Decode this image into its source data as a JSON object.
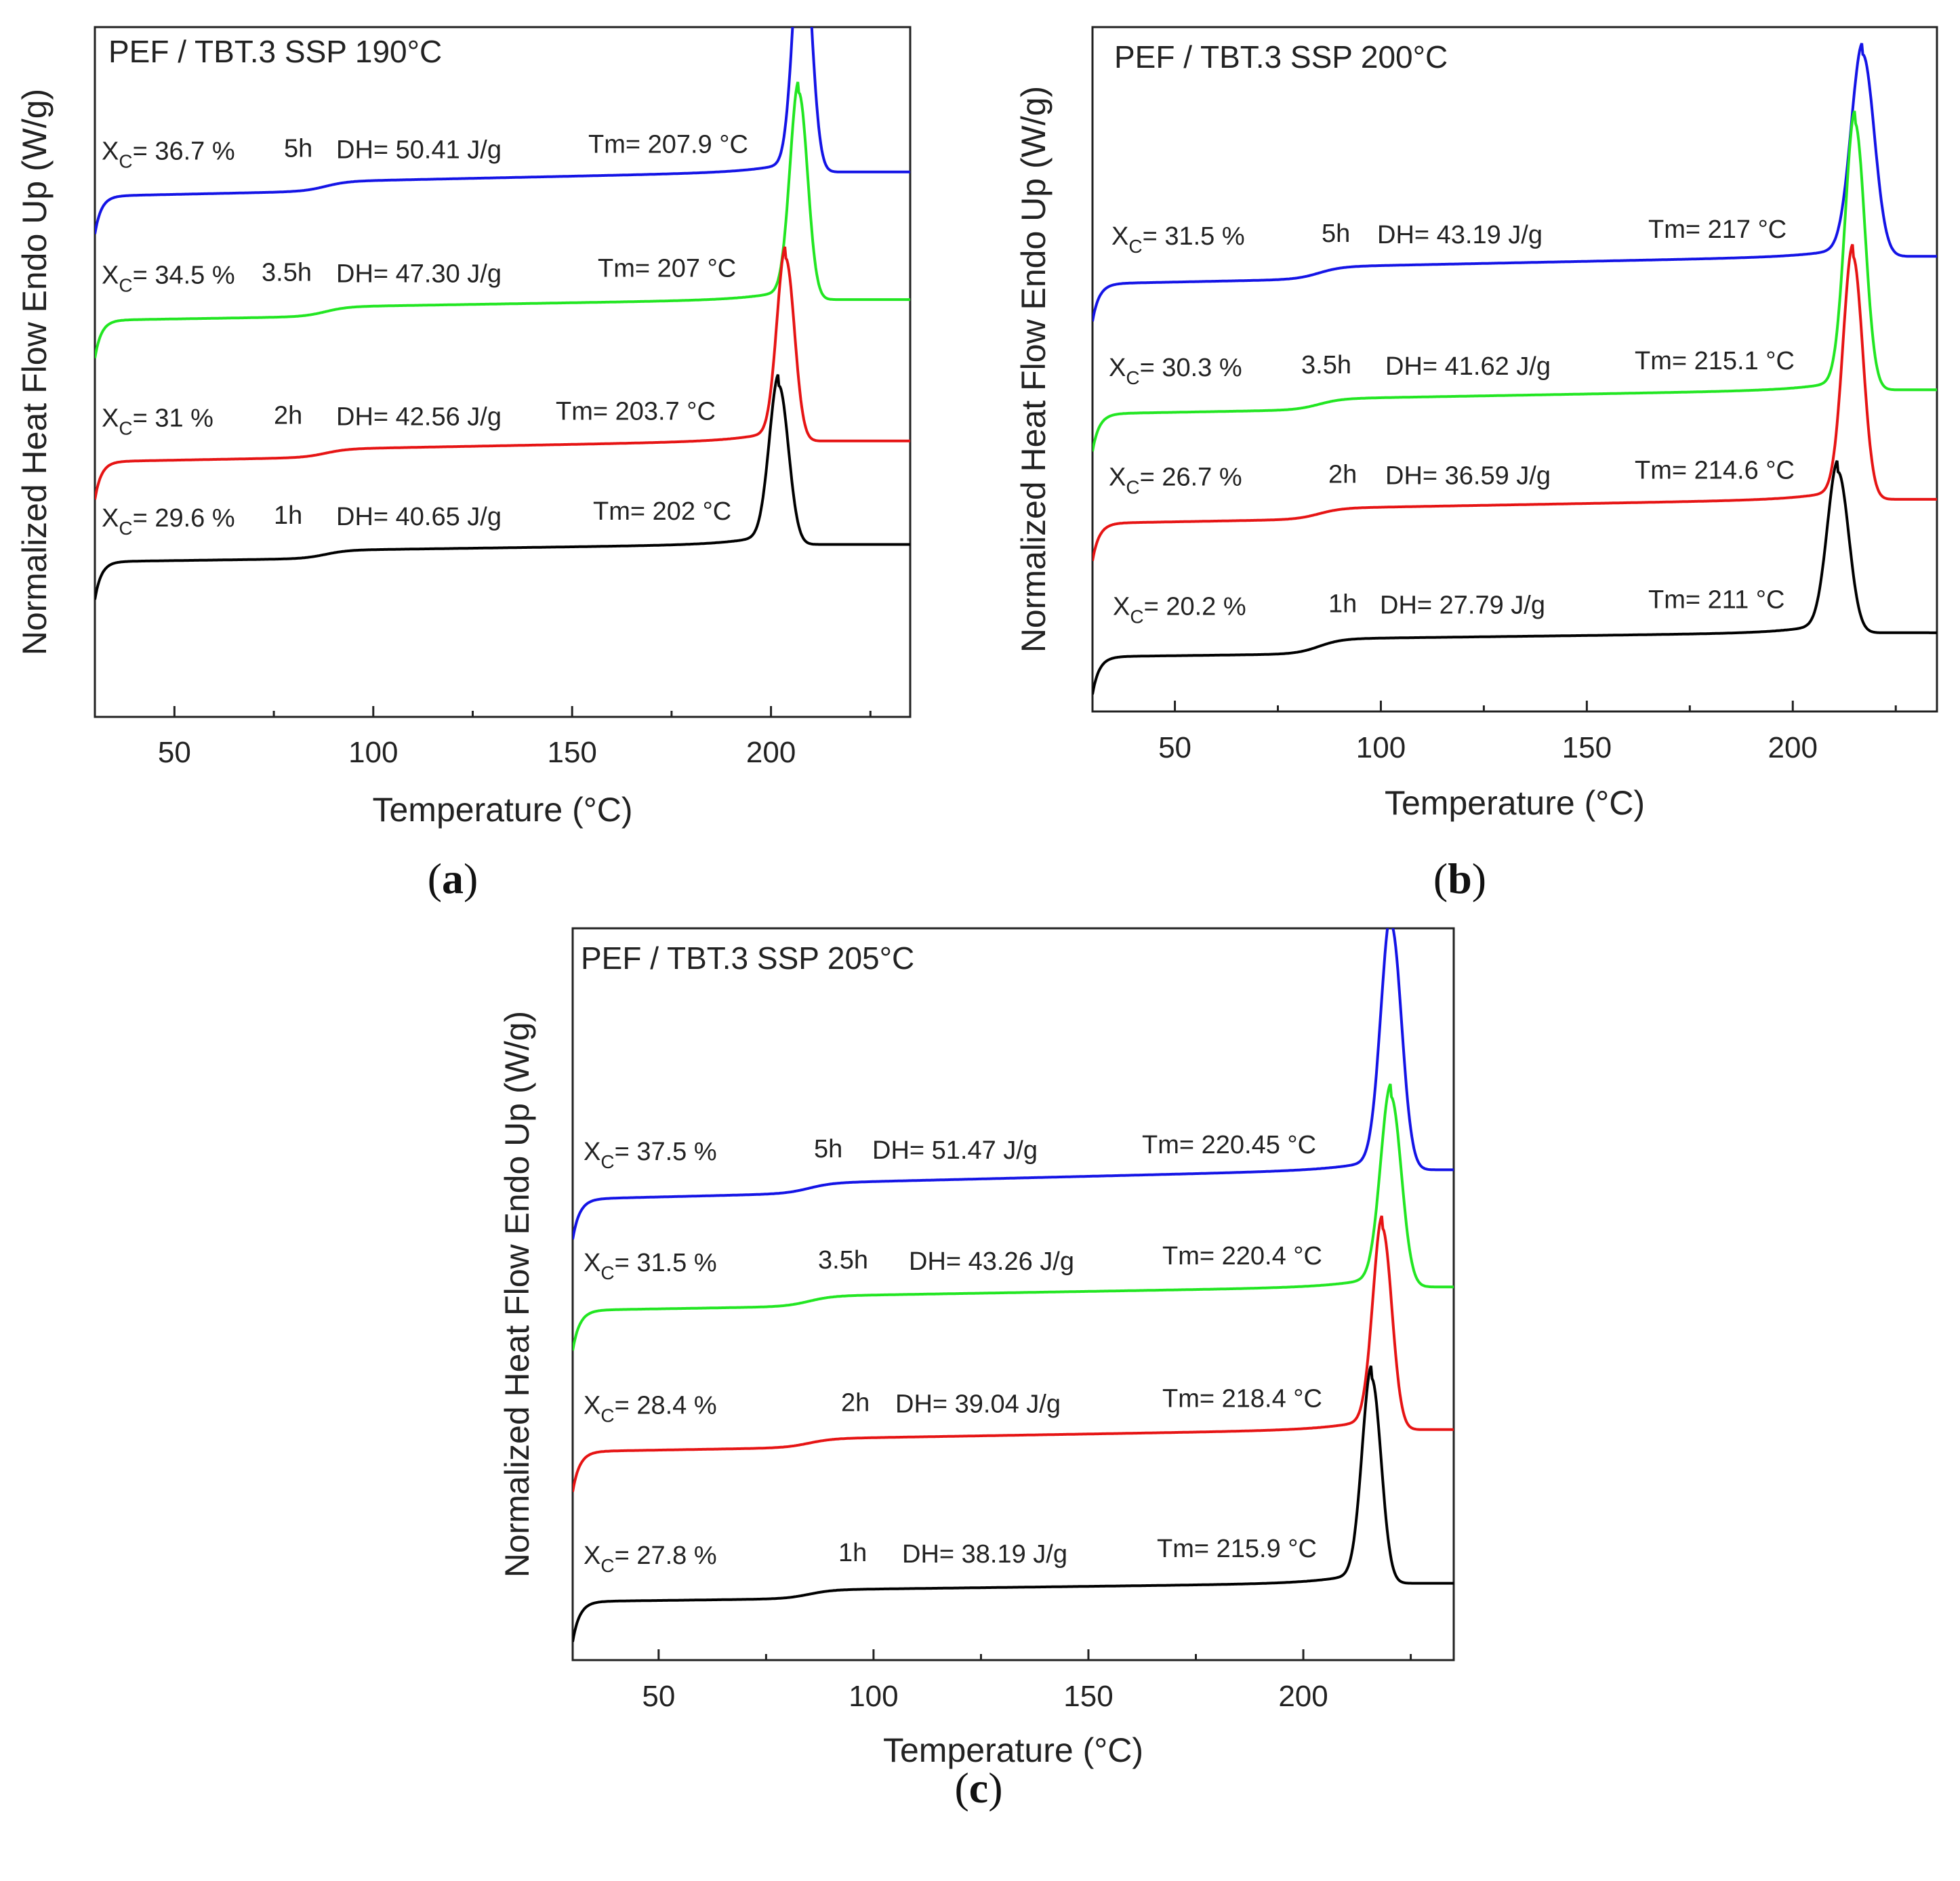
{
  "figure": {
    "panels": [
      {
        "id": "a",
        "label_open": "(",
        "label_letter": "a",
        "label_close": ")"
      },
      {
        "id": "b",
        "label_open": "(",
        "label_letter": "b",
        "label_close": ")"
      },
      {
        "id": "c",
        "label_open": "(",
        "label_letter": "c",
        "label_close": ")"
      }
    ]
  },
  "chart_data": [
    {
      "type": "line",
      "panel": "a",
      "title": "PEF / TBT.3 SSP 190°C",
      "xlabel": "Temperature (°C)",
      "ylabel": "Normalized Heat Flow Endo Up (W/g)",
      "xlim": [
        30,
        235
      ],
      "ylim": [
        0,
        10
      ],
      "xticks": [
        50,
        100,
        150,
        200
      ],
      "xtick_labels": [
        "50",
        "100",
        "150",
        "200"
      ],
      "grid": false,
      "legend": "none",
      "series": [
        {
          "name": "5h",
          "color": "#1414e6",
          "baseline": 7.55,
          "end_baseline": 7.9,
          "step": 0.14,
          "step_temp": 88,
          "tm": 207.9,
          "peak_height": 3.7,
          "width": 2.2,
          "xc_label": "X",
          "xc_sub": "C",
          "xc_value": "= 36.7 %",
          "time_label": "5h",
          "dh_label": "DH= 50.41  J/g",
          "tm_label": "Tm= 207.9 °C"
        },
        {
          "name": "3.5h",
          "color": "#22e622",
          "baseline": 5.75,
          "end_baseline": 6.05,
          "step": 0.14,
          "step_temp": 88,
          "tm": 207,
          "peak_height": 3.0,
          "width": 2.2,
          "xc_label": "X",
          "xc_sub": "C",
          "xc_value": "= 34.5 %",
          "time_label": "3.5h",
          "dh_label": "DH= 47.30   J/g",
          "tm_label": "Tm= 207 °C"
        },
        {
          "name": "2h",
          "color": "#e61414",
          "baseline": 3.7,
          "end_baseline": 4.0,
          "step": 0.12,
          "step_temp": 88,
          "tm": 203.7,
          "peak_height": 2.65,
          "width": 2.2,
          "xc_label": "X",
          "xc_sub": "C",
          "xc_value": "= 31 %",
          "time_label": "2h",
          "dh_label": "DH= 42.56   J/g",
          "tm_label": "Tm= 203.7 °C"
        },
        {
          "name": "1h",
          "color": "#000000",
          "baseline": 2.25,
          "end_baseline": 2.5,
          "step": 0.12,
          "step_temp": 88,
          "tm": 202,
          "peak_height": 2.3,
          "width": 2.4,
          "xc_label": "X",
          "xc_sub": "C",
          "xc_value": "= 29.6 %",
          "time_label": "1h",
          "dh_label": "DH= 40.65   J/g",
          "tm_label": "Tm= 202 °C"
        }
      ]
    },
    {
      "type": "line",
      "panel": "b",
      "title": "PEF / TBT.3 SSP 200°C",
      "xlabel": "Temperature (°C)",
      "ylabel": "Normalized Heat Flow Endo Up (W/g)",
      "xlim": [
        30,
        235
      ],
      "ylim": [
        0,
        10
      ],
      "xticks": [
        50,
        100,
        150,
        200
      ],
      "xtick_labels": [
        "50",
        "100",
        "150",
        "200"
      ],
      "grid": false,
      "legend": "none",
      "series": [
        {
          "name": "5h",
          "color": "#1414e6",
          "baseline": 6.25,
          "end_baseline": 6.65,
          "step": 0.18,
          "step_temp": 85,
          "tm": 217,
          "peak_height": 2.95,
          "width": 2.8,
          "xc_label": "X",
          "xc_sub": "C",
          "xc_value": "= 31.5 %",
          "time_label": "5h",
          "dh_label": "DH= 43.19  J/g",
          "tm_label": "Tm= 217 °C"
        },
        {
          "name": "3.5h",
          "color": "#22e622",
          "baseline": 4.35,
          "end_baseline": 4.7,
          "step": 0.16,
          "step_temp": 85,
          "tm": 215.1,
          "peak_height": 3.9,
          "width": 2.4,
          "xc_label": "X",
          "xc_sub": "C",
          "xc_value": "= 30.3 %",
          "time_label": "3.5h",
          "dh_label": "DH= 41.62   J/g",
          "tm_label": "Tm= 215.1 °C"
        },
        {
          "name": "2h",
          "color": "#e61414",
          "baseline": 2.75,
          "end_baseline": 3.1,
          "step": 0.16,
          "step_temp": 85,
          "tm": 214.6,
          "peak_height": 3.55,
          "width": 2.4,
          "xc_label": "X",
          "xc_sub": "C",
          "xc_value": "= 26.7 %",
          "time_label": "2h",
          "dh_label": "DH=  36.59 J/g",
          "tm_label": "Tm= 214.6 °C"
        },
        {
          "name": "1h",
          "color": "#000000",
          "baseline": 0.8,
          "end_baseline": 1.15,
          "step": 0.22,
          "step_temp": 85,
          "tm": 211,
          "peak_height": 2.35,
          "width": 2.6,
          "xc_label": "X",
          "xc_sub": "C",
          "xc_value": "= 20.2 %",
          "time_label": "1h",
          "dh_label": "DH= 27.79  J/g",
          "tm_label": "Tm= 211 °C"
        }
      ]
    },
    {
      "type": "line",
      "panel": "c",
      "title": "PEF / TBT.3 SSP 205°C",
      "xlabel": "Temperature (°C)",
      "ylabel": "Normalized Heat Flow Endo Up (W/g)",
      "xlim": [
        30,
        235
      ],
      "ylim": [
        0,
        10
      ],
      "xticks": [
        50,
        100,
        150,
        200
      ],
      "xtick_labels": [
        "50",
        "100",
        "150",
        "200"
      ],
      "grid": false,
      "legend": "none",
      "series": [
        {
          "name": "5h",
          "color": "#1414e6",
          "baseline": 6.3,
          "end_baseline": 6.7,
          "step": 0.14,
          "step_temp": 85,
          "tm": 220.45,
          "peak_height": 3.35,
          "width": 2.4,
          "xc_label": "X",
          "xc_sub": "C",
          "xc_value": "= 37.5 %",
          "time_label": "5h",
          "dh_label": "DH= 51.47   J/g",
          "tm_label": "Tm= 220.45 °C"
        },
        {
          "name": "3.5h",
          "color": "#22e622",
          "baseline": 4.78,
          "end_baseline": 5.1,
          "step": 0.14,
          "step_temp": 85,
          "tm": 220.4,
          "peak_height": 2.6,
          "width": 2.4,
          "xc_label": "X",
          "xc_sub": "C",
          "xc_value": "= 31.5 %",
          "time_label": "3.5h",
          "dh_label": "DH= 43.26  J/g",
          "tm_label": "Tm= 220.4 °C"
        },
        {
          "name": "2h",
          "color": "#e61414",
          "baseline": 2.85,
          "end_baseline": 3.15,
          "step": 0.12,
          "step_temp": 85,
          "tm": 218.4,
          "peak_height": 2.75,
          "width": 2.2,
          "xc_label": "X",
          "xc_sub": "C",
          "xc_value": "= 28.4 %",
          "time_label": "2h",
          "dh_label": "DH=  39.04 J/g",
          "tm_label": "Tm= 218.4 °C"
        },
        {
          "name": "1h",
          "color": "#000000",
          "baseline": 0.8,
          "end_baseline": 1.05,
          "step": 0.12,
          "step_temp": 85,
          "tm": 215.9,
          "peak_height": 2.8,
          "width": 2.2,
          "xc_label": "X",
          "xc_sub": "C",
          "xc_value": "= 27.8 %",
          "time_label": "1h",
          "dh_label": "DH= 38.19  J/g",
          "tm_label": "Tm= 215.9 °C"
        }
      ]
    }
  ]
}
